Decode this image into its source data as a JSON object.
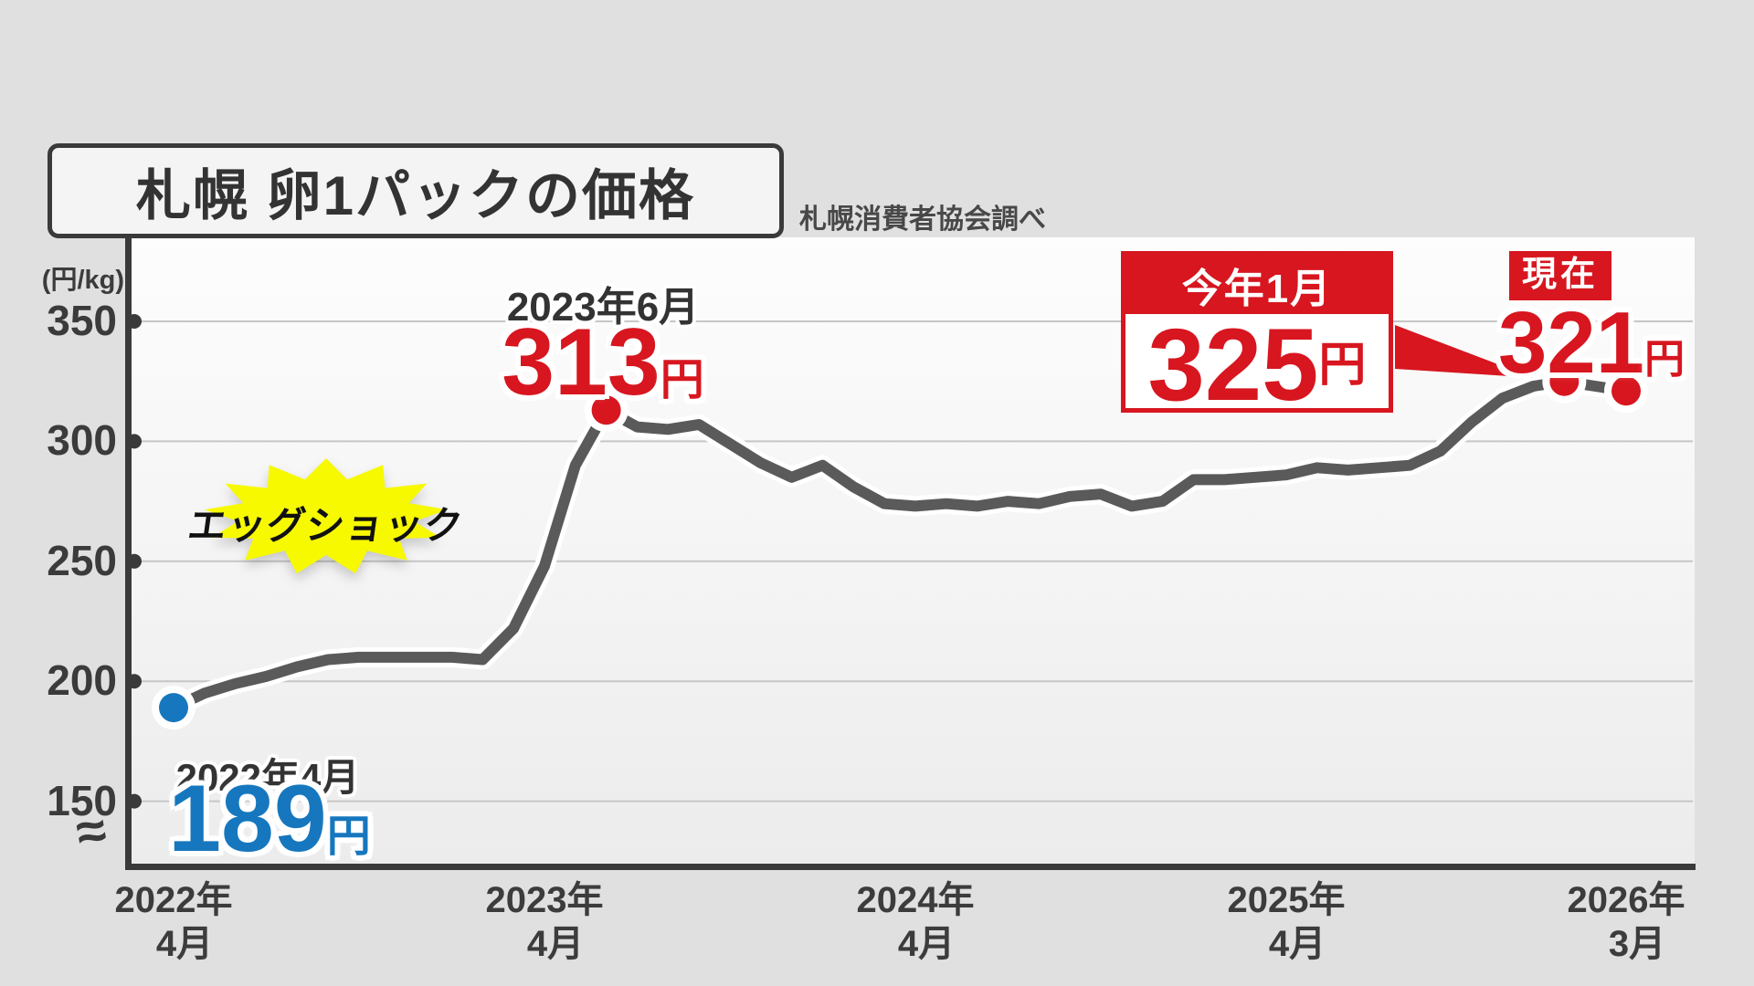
{
  "title": "札幌 卵1パックの価格",
  "source": "札幌消費者協会調べ",
  "y_axis": {
    "unit": "(円/kg)",
    "ticks": [
      "350",
      "300",
      "250",
      "200",
      "150"
    ],
    "axis_break_symbol": "≈"
  },
  "x_axis": {
    "labels": [
      {
        "year": "2022年",
        "month": "4月"
      },
      {
        "year": "2023年",
        "month": "4月"
      },
      {
        "year": "2024年",
        "month": "4月"
      },
      {
        "year": "2025年",
        "month": "4月"
      },
      {
        "year": "2026年",
        "month": "3月"
      }
    ]
  },
  "annotations": {
    "start_date": "2022年4月",
    "start_value": "189",
    "start_unit": "円",
    "peak_date": "2023年6月",
    "peak_value": "313",
    "peak_unit": "円",
    "egg_shock": "エッグショック",
    "jan_label": "今年1月",
    "jan_value": "325",
    "jan_unit": "円",
    "current_label": "現在",
    "current_value": "321",
    "current_unit": "円"
  },
  "colors": {
    "background": "#e0e0e0",
    "plot_top": "#fdfdfd",
    "plot_bottom": "#ececec",
    "axis": "#3a3a3a",
    "grid": "#c6c6c6",
    "line": "#5a5a5a",
    "line_casing": "#ffffff",
    "blue": "#1677be",
    "red": "#d7161f",
    "yellow": "#f7f900",
    "text": "#333333"
  },
  "chart_data": {
    "type": "line",
    "title": "札幌 卵1パックの価格",
    "source": "札幌消費者協会調べ",
    "ylabel": "(円/kg)",
    "ylim": [
      150,
      350
    ],
    "axis_break_below": 150,
    "yticks": [
      350,
      300,
      250,
      200,
      150
    ],
    "xticks": [
      "2022年4月",
      "2023年4月",
      "2024年4月",
      "2025年4月",
      "2026年3月"
    ],
    "x_start": "2022年4月",
    "x_interval": "monthly",
    "grid": "horizontal",
    "values": [
      189,
      195,
      199,
      202,
      206,
      209,
      210,
      210,
      210,
      210,
      209,
      222,
      248,
      290,
      313,
      306,
      305,
      307,
      299,
      291,
      285,
      290,
      281,
      274,
      273,
      274,
      273,
      275,
      274,
      277,
      278,
      273,
      275,
      284,
      284,
      285,
      286,
      289,
      288,
      289,
      290,
      296,
      308,
      318,
      323,
      325,
      323,
      321
    ],
    "labeled_points": [
      {
        "month_index": 0,
        "label": "2022年4月",
        "value": 189,
        "color": "blue"
      },
      {
        "month_index": 14,
        "label": "2023年6月",
        "value": 313,
        "color": "red"
      },
      {
        "month_index": 45,
        "label": "今年1月",
        "value": 325,
        "color": "red"
      },
      {
        "month_index": 47,
        "label": "現在",
        "value": 321,
        "color": "red"
      }
    ],
    "annotation": "エッグショック"
  }
}
